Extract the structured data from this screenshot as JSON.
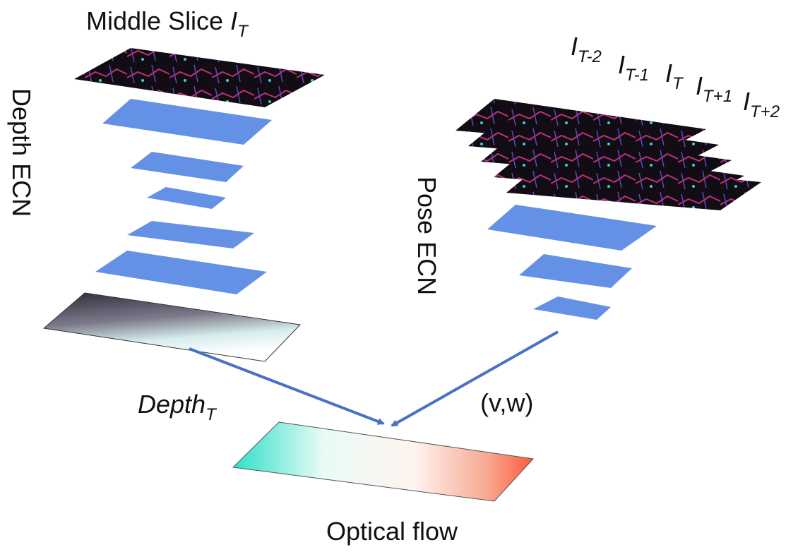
{
  "middle_slice": {
    "text": "Middle Slice",
    "symbol": "I",
    "subscript": "T"
  },
  "frames": [
    {
      "symbol": "I",
      "subscript": "T-2"
    },
    {
      "symbol": "I",
      "subscript": "T-1"
    },
    {
      "symbol": "I",
      "subscript": "T"
    },
    {
      "symbol": "I",
      "subscript": "T+1"
    },
    {
      "symbol": "I",
      "subscript": "T+2"
    }
  ],
  "depth_network": "Depth ECN",
  "pose_network": "Pose ECN",
  "depth_output": {
    "text": "Depth",
    "subscript": "T"
  },
  "pose_output": "(v,w)",
  "result": "Optical flow"
}
